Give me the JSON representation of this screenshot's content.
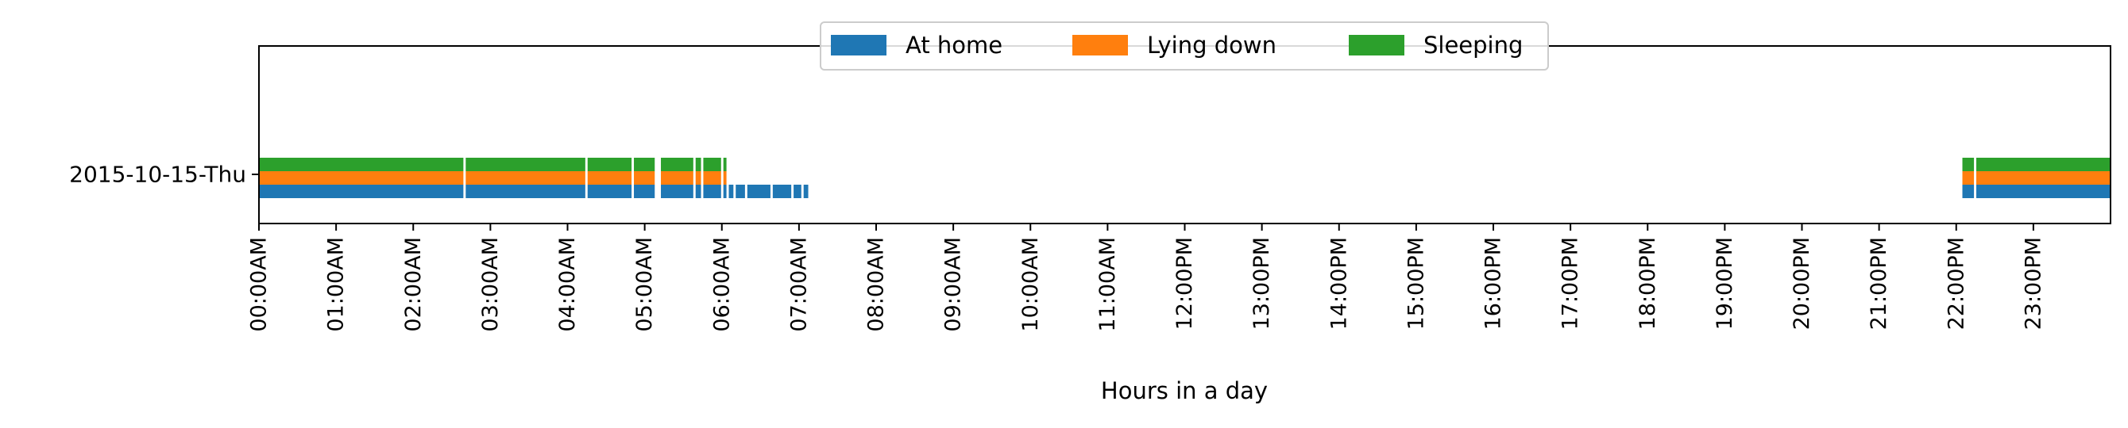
{
  "chart_data": {
    "type": "broken-bar-timeline",
    "title": "",
    "xlabel": "Hours in a day",
    "ylabel": "",
    "xlim": [
      0,
      24
    ],
    "x_unit": "hour of day",
    "x_ticks": [
      0,
      1,
      2,
      3,
      4,
      5,
      6,
      7,
      8,
      9,
      10,
      11,
      12,
      13,
      14,
      15,
      16,
      17,
      18,
      19,
      20,
      21,
      22,
      23
    ],
    "x_tick_labels": [
      "00:00AM",
      "01:00AM",
      "02:00AM",
      "03:00AM",
      "04:00AM",
      "05:00AM",
      "06:00AM",
      "07:00AM",
      "08:00AM",
      "09:00AM",
      "10:00AM",
      "11:00AM",
      "12:00PM",
      "13:00PM",
      "14:00PM",
      "15:00PM",
      "16:00PM",
      "17:00PM",
      "18:00PM",
      "19:00PM",
      "20:00PM",
      "21:00PM",
      "22:00PM",
      "23:00PM"
    ],
    "categories": [
      "2015-10-15-Thu"
    ],
    "grid": false,
    "legend_position": "top-center",
    "series": [
      {
        "name": "At home",
        "color": "#1f77b4",
        "intervals": [
          [
            0.0,
            2.65
          ],
          [
            2.68,
            4.23
          ],
          [
            4.26,
            4.83
          ],
          [
            4.86,
            5.13
          ],
          [
            5.21,
            5.63
          ],
          [
            5.66,
            5.73
          ],
          [
            5.76,
            5.99
          ],
          [
            6.02,
            6.06
          ],
          [
            6.09,
            6.15
          ],
          [
            6.18,
            6.3
          ],
          [
            6.33,
            6.63
          ],
          [
            6.66,
            6.9
          ],
          [
            6.93,
            7.03
          ],
          [
            7.06,
            7.12
          ],
          [
            22.08,
            22.23
          ],
          [
            22.26,
            24.0
          ]
        ]
      },
      {
        "name": "Lying down",
        "color": "#ff7f0e",
        "intervals": [
          [
            0.0,
            2.65
          ],
          [
            2.68,
            4.23
          ],
          [
            4.26,
            4.83
          ],
          [
            4.86,
            5.13
          ],
          [
            5.21,
            5.63
          ],
          [
            5.66,
            5.73
          ],
          [
            5.76,
            5.99
          ],
          [
            6.02,
            6.06
          ],
          [
            22.08,
            22.23
          ],
          [
            22.26,
            24.0
          ]
        ]
      },
      {
        "name": "Sleeping",
        "color": "#2ca02c",
        "intervals": [
          [
            0.0,
            2.65
          ],
          [
            2.68,
            4.23
          ],
          [
            4.26,
            4.83
          ],
          [
            4.86,
            5.13
          ],
          [
            5.21,
            5.63
          ],
          [
            5.66,
            5.73
          ],
          [
            5.76,
            5.99
          ],
          [
            6.02,
            6.06
          ],
          [
            22.08,
            22.23
          ],
          [
            22.26,
            24.0
          ]
        ]
      }
    ]
  }
}
